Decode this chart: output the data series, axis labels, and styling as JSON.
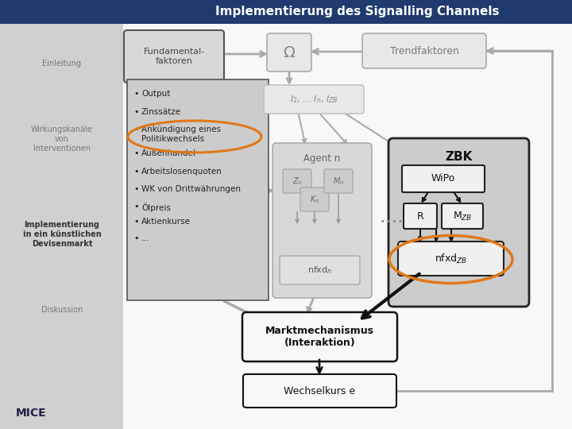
{
  "title": "Implementierung des Signalling Channels",
  "title_bg": "#1e3a6e",
  "title_color": "#ffffff",
  "sidebar_bg": "#d0d0d0",
  "main_bg": "#f0f0f0",
  "sidebar_items": [
    "Einleitung",
    "Wirkungskanäle\nvon\nInterventionen",
    "Implementierung\nin ein künstlichen\nDevisenmarkt",
    "Diskussion"
  ],
  "mice_text": "MICE",
  "fundamental_title": "Fundamental-\nfaktoren",
  "bullets": [
    "Output",
    "Zinssätze",
    "Ankündigung eines\nPolitikwechsels",
    "Außenhandel",
    "Arbeitslosenquoten",
    "WK von Drittwährungen",
    "Ölpreis",
    "Aktienkurse",
    "..."
  ],
  "trend_box": "Trendfaktoren",
  "omega_box": "Ω",
  "agent_box": "Agent n",
  "zbk_box": "ZBK",
  "wipo_box": "WiPo",
  "r_box": "R",
  "markt_box": "Marktmechanismus\n(Interaktion)",
  "wechsel_box": "Wechselkurs e",
  "orange": "#e07818",
  "gray_arrow": "#aaaaaa",
  "dark": "#111111",
  "list_bg": "#cccccc",
  "fund_bg": "#d8d8d8",
  "zbk_bg": "#cccccc",
  "agent_bg": "#d8d8d8",
  "box_bg": "#eeeeee",
  "white_bg": "#f8f8f8"
}
